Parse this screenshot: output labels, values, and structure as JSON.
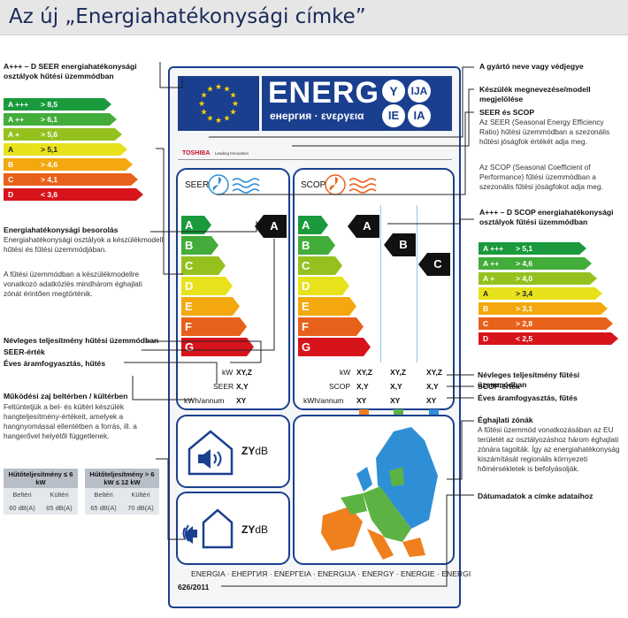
{
  "title": "Az új „Energiahatékonysági címke”",
  "left": {
    "seer_scale_title": "A+++ – D SEER energiahatékonysági osztályok hűtési üzemmódban",
    "seer_scale": [
      {
        "cls": "A +++",
        "val": "> 8,5",
        "color": "#1a9a3c"
      },
      {
        "cls": "A ++",
        "val": "> 6,1",
        "color": "#42ad3a"
      },
      {
        "cls": "A +",
        "val": "> 5,6",
        "color": "#95c11f"
      },
      {
        "cls": "A",
        "val": "> 5,1",
        "color": "#e8e21c"
      },
      {
        "cls": "B",
        "val": "> 4,6",
        "color": "#f3a80f"
      },
      {
        "cls": "C",
        "val": "> 4,1",
        "color": "#e8611a"
      },
      {
        "cls": "D",
        "val": "< 3,6",
        "color": "#d7141b"
      }
    ],
    "class_title": "Energiahatékonysági besorolás",
    "class_text1": "Energiahatékonysági osztályok a készülékmodell hűtési és fűtési üzemmódjában.",
    "class_text2": "A fűtési üzemmódban a készülékmodellre vonatkozó adatközlés mindhárom éghajlati zónát érintően megtörténik.",
    "cool_capacity": "Névleges teljesítmény hűtési üzemmódban",
    "seer_value": "SEER-érték",
    "annual_cool": "Éves áramfogyasztás, hűtés",
    "noise_title": "Működési zaj beltérben / kültérben",
    "noise_text": "Feltüntetjük a bel- és kültéri készülék hangteljesítmény-értékeit, amelyek a hangnyomással ellentétben a forrás, ill. a hangerővel helyétől függetlenek.",
    "noise_table": {
      "h1": "Hűtőteljesítmény ≤ 6 kW",
      "h2": "Hűtőteljesítmény > 6 kW ≤ 12 kW",
      "indoor": "Beltéri",
      "outdoor": "Kültéri",
      "v1": "60 dB(A)",
      "v2": "65 dB(A)",
      "v3": "65 dB(A)",
      "v4": "70 dB(A)"
    }
  },
  "right": {
    "maker": "A gyártó neve vagy védjegye",
    "model": "Készülék megnevezése/modell megjelölése",
    "seer_scop_title": "SEER és SCOP",
    "seer_text": "Az SEER (Seasonal Energy Efficiency Ratio) hűtési üzemmódban a szezonális hűtési jóságfok értékét adja meg.",
    "scop_text": "Az SCOP (Seasonal Coefficient of Performance) fűtési üzemmódban a szezonális fűtési jóságfokot adja meg.",
    "scop_scale_title": "A+++ – D SCOP energiahatékonysági osztályok fűtési üzemmódban",
    "scop_scale": [
      {
        "cls": "A +++",
        "val": "> 5,1",
        "color": "#1a9a3c"
      },
      {
        "cls": "A ++",
        "val": "> 4,6",
        "color": "#42ad3a"
      },
      {
        "cls": "A +",
        "val": "> 4,0",
        "color": "#95c11f"
      },
      {
        "cls": "A",
        "val": "> 3,4",
        "color": "#e8e21c"
      },
      {
        "cls": "B",
        "val": "> 3,1",
        "color": "#f3a80f"
      },
      {
        "cls": "C",
        "val": "> 2,8",
        "color": "#e8611a"
      },
      {
        "cls": "D",
        "val": "< 2,5",
        "color": "#d7141b"
      }
    ],
    "heat_capacity": "Névleges teljesítmény fűtési üzemmódban",
    "scop_value": "SCOP-érték",
    "annual_heat": "Éves áramfogyasztás, fűtés",
    "zones_title": "Éghajlati zónák",
    "zones_text": "A fűtési üzemmód vonatkozásában az EU területét az osztályozáshoz három éghajlati zónára tagolták. Így az energiahatékonyság kiszámítását regionális környezeti hőmérsékletek is befolyásolják.",
    "date_title": "Dátumadatok a címke adataihoz"
  },
  "label": {
    "energ": "ENERG",
    "energ_sub": "енергия · ενεργεια",
    "y": "Y",
    "ija": "IJA",
    "ie": "IE",
    "ia": "IA",
    "brand": "TOSHIBA",
    "brand_tag": "Leading Innovation",
    "seer": "SEER",
    "scop": "SCOP",
    "bars": [
      "A",
      "B",
      "C",
      "D",
      "E",
      "F",
      "G"
    ],
    "seer_class": "A",
    "scop_classes": [
      "A",
      "B",
      "C"
    ],
    "kw": "kW",
    "seer_row": "SEER",
    "kwh": "kWh/annum",
    "xyz": "XY,Z",
    "xy": "X,Y",
    "xy2": "XY",
    "scop_row": "SCOP",
    "zydb": "ZY",
    "db": "dB",
    "footer": "ENERGIA · ЕНЕРГИЯ · ΕΝΕΡΓΕΙΑ · ENERGIJA · ENERGY · ENERGIE · ENERGI",
    "regulation": "626/2011"
  }
}
